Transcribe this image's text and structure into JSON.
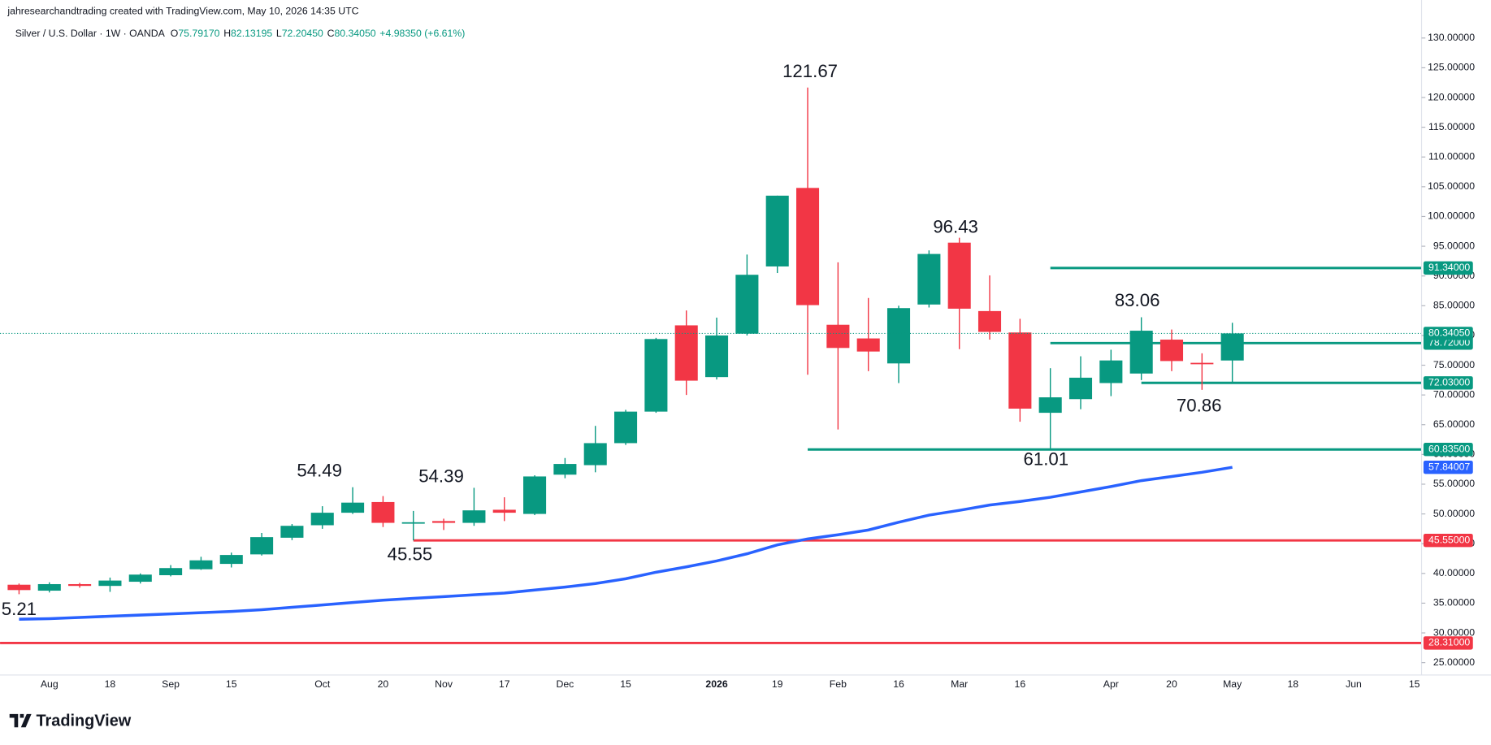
{
  "header": {
    "watermark": "jahresearchandtrading created with TradingView.com, May 10, 2026 14:35 UTC",
    "symbol": "Silver / U.S. Dollar · 1W · OANDA",
    "ohlc": [
      {
        "key": "O",
        "value": "75.79170"
      },
      {
        "key": "H",
        "value": "82.13195"
      },
      {
        "key": "L",
        "value": "72.20450"
      },
      {
        "key": "C",
        "value": "80.34050"
      }
    ],
    "change": "+4.98350 (+6.61%)"
  },
  "footer": {
    "logo": "TradingView"
  },
  "chart_data": {
    "type": "candlestick",
    "categories": [
      null,
      "Aug",
      null,
      "18",
      null,
      "Sep",
      null,
      "15",
      null,
      null,
      "Oct",
      null,
      "20",
      null,
      "Nov",
      null,
      "17",
      null,
      "Dec",
      null,
      "15",
      null,
      null,
      "2026",
      null,
      "19",
      null,
      "Feb",
      null,
      "16",
      null,
      "Mar",
      null,
      "16",
      null,
      null,
      "Apr",
      null,
      "20",
      null,
      "May",
      null,
      "18",
      null,
      "Jun",
      null,
      "15"
    ],
    "open": [
      38.1,
      37.1,
      38.2,
      37.9,
      38.6,
      39.7,
      40.7,
      41.6,
      43.2,
      46.0,
      48.1,
      50.2,
      52.0,
      48.5,
      48.8,
      48.5,
      50.7,
      50.0,
      56.6,
      58.2,
      61.9,
      67.2,
      81.7,
      73.0,
      80.3,
      91.6,
      104.8,
      81.8,
      79.5,
      75.3,
      85.2,
      95.6,
      84.1,
      80.5,
      67.0,
      69.3,
      72.0,
      73.6,
      79.3,
      75.4,
      75.7917,
      null,
      null,
      null,
      null,
      null,
      null
    ],
    "high": [
      38.3,
      38.5,
      38.4,
      39.3,
      40.0,
      41.4,
      42.8,
      43.5,
      46.8,
      48.3,
      51.3,
      54.49,
      53.0,
      50.5,
      49.2,
      54.39,
      52.8,
      56.5,
      59.4,
      64.8,
      67.5,
      79.6,
      84.2,
      83.0,
      93.6,
      103.5,
      121.67,
      92.3,
      86.3,
      85.0,
      94.3,
      96.43,
      90.1,
      82.8,
      74.5,
      76.5,
      77.6,
      83.06,
      81.0,
      77.0,
      82.13195,
      null,
      null,
      null,
      null,
      null,
      null
    ],
    "low": [
      36.5,
      36.8,
      37.6,
      36.9,
      38.3,
      39.5,
      40.6,
      41.0,
      43.0,
      45.6,
      47.5,
      50.0,
      47.8,
      45.55,
      47.3,
      48.0,
      48.8,
      49.8,
      56.0,
      57.0,
      61.6,
      67.0,
      70.0,
      72.6,
      80.0,
      90.5,
      73.4,
      64.2,
      74.0,
      72.0,
      84.7,
      77.7,
      79.3,
      65.5,
      61.01,
      67.6,
      69.8,
      72.5,
      74.0,
      70.86,
      72.2045,
      null,
      null,
      null,
      null,
      null,
      null
    ],
    "close": [
      37.2,
      38.2,
      37.9,
      38.8,
      39.8,
      40.9,
      42.2,
      43.1,
      46.1,
      48.0,
      50.2,
      51.9,
      48.5,
      48.6,
      48.5,
      50.6,
      50.2,
      56.3,
      58.4,
      61.9,
      67.2,
      79.4,
      72.4,
      80.0,
      90.2,
      103.5,
      85.1,
      77.9,
      77.3,
      84.6,
      93.7,
      84.5,
      80.6,
      67.7,
      69.6,
      72.9,
      75.8,
      80.8,
      75.7,
      75.3,
      80.3405,
      null,
      null,
      null,
      null,
      null,
      null
    ],
    "close_label": "80.34050",
    "up_color": "#089981",
    "down_color": "#f23645",
    "moving_average": {
      "color": "#2962ff",
      "label": "57.84007",
      "values": [
        32.3,
        32.4,
        32.6,
        32.8,
        33.0,
        33.2,
        33.4,
        33.6,
        33.9,
        34.3,
        34.7,
        35.1,
        35.5,
        35.8,
        36.1,
        36.4,
        36.7,
        37.2,
        37.7,
        38.3,
        39.1,
        40.2,
        41.1,
        42.1,
        43.3,
        44.8,
        45.8,
        46.5,
        47.3,
        48.6,
        49.8,
        50.6,
        51.5,
        52.1,
        52.8,
        53.7,
        54.6,
        55.6,
        56.3,
        57.0,
        57.84007,
        null,
        null,
        null,
        null,
        null,
        null
      ]
    },
    "levels": [
      {
        "value": 91.34,
        "label": "91.34000",
        "color": "#089981"
      },
      {
        "value": 78.72,
        "label": "78.72000",
        "color": "#089981"
      },
      {
        "value": 72.03,
        "label": "72.03000",
        "color": "#089981"
      },
      {
        "value": 60.835,
        "label": "60.83500",
        "color": "#089981"
      },
      {
        "value": 45.55,
        "label": "45.55000",
        "color": "#f23645"
      },
      {
        "value": 28.31,
        "label": "28.31000",
        "color": "#f23645"
      }
    ],
    "annotations": [
      "121.67",
      "96.43",
      "83.06",
      "70.86",
      "61.01",
      "54.49",
      "54.39",
      "45.55",
      "5.21"
    ],
    "ylim": [
      22.92,
      136.39
    ],
    "yticks": [
      {
        "value": 25,
        "label": "25.00000"
      },
      {
        "value": 30,
        "label": "30.00000"
      },
      {
        "value": 35,
        "label": "35.00000"
      },
      {
        "value": 40,
        "label": "40.00000"
      },
      {
        "value": 45,
        "label": "45.00000"
      },
      {
        "value": 50,
        "label": "50.00000"
      },
      {
        "value": 55,
        "label": "55.00000"
      },
      {
        "value": 60,
        "label": "60.00000"
      },
      {
        "value": 65,
        "label": "65.00000"
      },
      {
        "value": 70,
        "label": "70.00000"
      },
      {
        "value": 75,
        "label": "75.00000"
      },
      {
        "value": 80,
        "label": "80.00000"
      },
      {
        "value": 85,
        "label": "85.00000"
      },
      {
        "value": 90,
        "label": "90.00000"
      },
      {
        "value": 95,
        "label": "95.00000"
      },
      {
        "value": 100,
        "label": "100.00000"
      },
      {
        "value": 105,
        "label": "105.00000"
      },
      {
        "value": 110,
        "label": "110.00000"
      },
      {
        "value": 115,
        "label": "115.00000"
      },
      {
        "value": 120,
        "label": "120.00000"
      },
      {
        "value": 125,
        "label": "125.00000"
      },
      {
        "value": 130,
        "label": "130.00000"
      }
    ],
    "grid": false
  }
}
